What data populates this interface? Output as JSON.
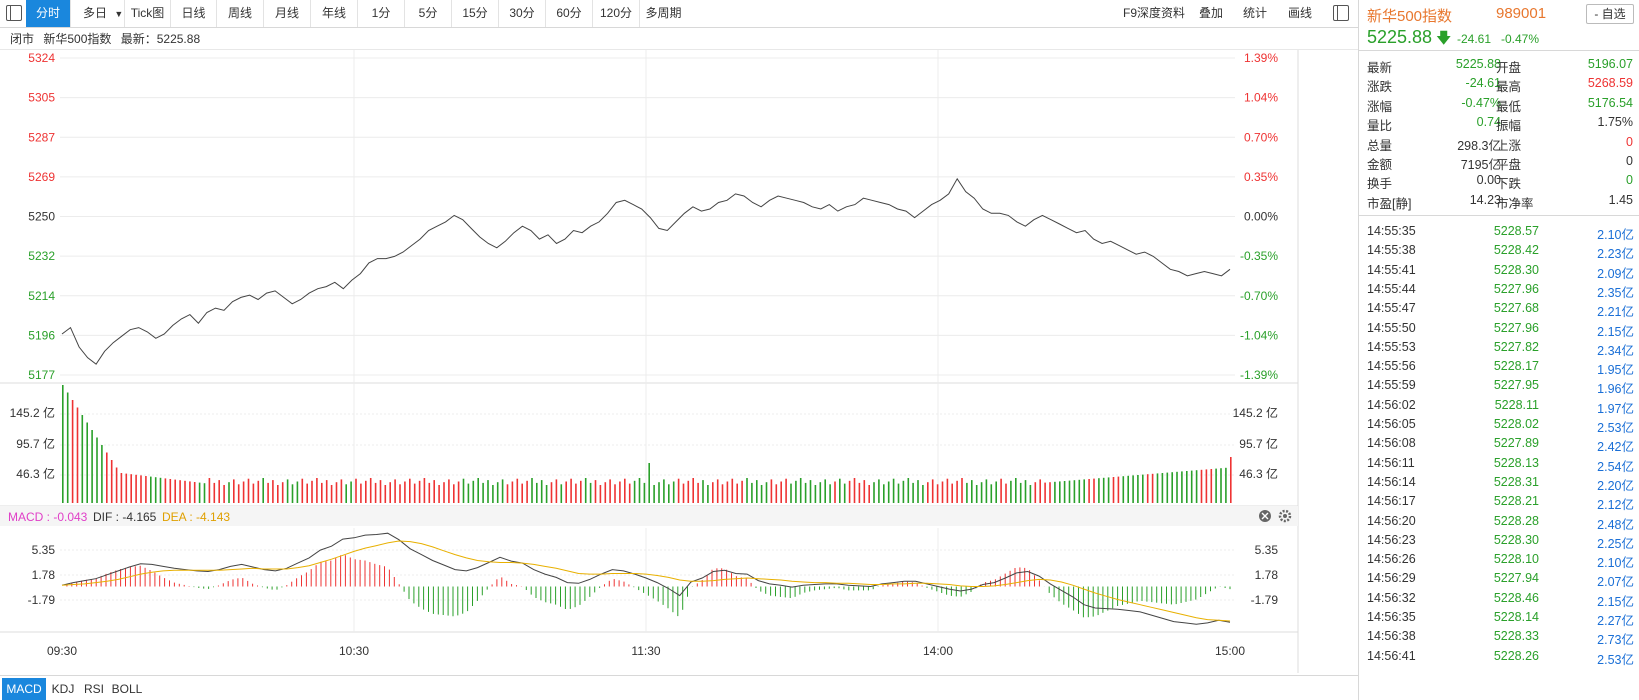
{
  "toolbar": {
    "tabs": [
      "分时",
      "多日",
      "Tick图",
      "日线",
      "周线",
      "月线",
      "年线",
      "1分",
      "5分",
      "15分",
      "30分",
      "60分",
      "120分",
      "多周期"
    ],
    "active_tab": "分时",
    "dropdown_arrow": "▼",
    "right_buttons": [
      "F9深度资料",
      "叠加",
      "统计",
      "画线"
    ]
  },
  "infoline": {
    "status": "闭市",
    "name": "新华500指数",
    "latest_label": "最新：5225.88"
  },
  "price_axis": {
    "left_labels": [
      "5324",
      "5305",
      "5287",
      "5269",
      "5250",
      "5232",
      "5214",
      "5196",
      "5177"
    ],
    "right_labels": [
      "1.39%",
      "1.04%",
      "0.70%",
      "0.35%",
      "0.00%",
      "-0.35%",
      "-0.70%",
      "-1.04%",
      "-1.39%"
    ],
    "ymax": 5324,
    "ymin": 5177
  },
  "volume_axis": {
    "labels": [
      "145.2 亿",
      "95.7 亿",
      "46.3 亿"
    ]
  },
  "macd": {
    "macd_label": "MACD : -0.043",
    "dif_label": "DIF : -4.165",
    "dea_label": "DEA : -4.143",
    "axis_labels": [
      "5.35",
      "1.78",
      "-1.79"
    ]
  },
  "time_axis": [
    "09:30",
    "10:30",
    "11:30",
    "14:00",
    "15:00"
  ],
  "bottom_tabs": [
    "MACD",
    "KDJ",
    "RSI",
    "BOLL"
  ],
  "quote": {
    "name": "新华500指数",
    "code": "989001",
    "watch_label": "- 自选",
    "price": "5225.88",
    "arrow": "🡇",
    "change": "-24.61",
    "change_pct": "-0.47%",
    "rows": [
      {
        "l1": "最新",
        "v1": "5225.88",
        "c1": "green",
        "l2": "开盘",
        "v2": "5196.07",
        "c2": "green"
      },
      {
        "l1": "涨跌",
        "v1": "-24.61",
        "c1": "green",
        "l2": "最高",
        "v2": "5268.59",
        "c2": "red"
      },
      {
        "l1": "涨幅",
        "v1": "-0.47%",
        "c1": "green",
        "l2": "最低",
        "v2": "5176.54",
        "c2": "green"
      },
      {
        "l1": "量比",
        "v1": "0.74",
        "c1": "green",
        "l2": "振幅",
        "v2": "1.75%",
        "c2": "black"
      },
      {
        "l1": "总量",
        "v1": "298.3亿",
        "c1": "black",
        "l2": "上涨",
        "v2": "0",
        "c2": "red"
      },
      {
        "l1": "金额",
        "v1": "7195亿",
        "c1": "black",
        "l2": "平盘",
        "v2": "0",
        "c2": "black"
      },
      {
        "l1": "换手",
        "v1": "0.00",
        "c1": "black",
        "l2": "下跌",
        "v2": "0",
        "c2": "green"
      },
      {
        "l1": "市盈[静]",
        "v1": "14.23",
        "c1": "black",
        "l2": "市净率",
        "v2": "1.45",
        "c2": "black"
      }
    ]
  },
  "ticks": [
    {
      "t": "14:55:35",
      "p": "5228.57",
      "v": "2.10亿"
    },
    {
      "t": "14:55:38",
      "p": "5228.42",
      "v": "2.23亿"
    },
    {
      "t": "14:55:41",
      "p": "5228.30",
      "v": "2.09亿"
    },
    {
      "t": "14:55:44",
      "p": "5227.96",
      "v": "2.35亿"
    },
    {
      "t": "14:55:47",
      "p": "5227.68",
      "v": "2.21亿"
    },
    {
      "t": "14:55:50",
      "p": "5227.96",
      "v": "2.15亿"
    },
    {
      "t": "14:55:53",
      "p": "5227.82",
      "v": "2.34亿"
    },
    {
      "t": "14:55:56",
      "p": "5228.17",
      "v": "1.95亿"
    },
    {
      "t": "14:55:59",
      "p": "5227.95",
      "v": "1.96亿"
    },
    {
      "t": "14:56:02",
      "p": "5228.11",
      "v": "1.97亿"
    },
    {
      "t": "14:56:05",
      "p": "5228.02",
      "v": "2.53亿"
    },
    {
      "t": "14:56:08",
      "p": "5227.89",
      "v": "2.42亿"
    },
    {
      "t": "14:56:11",
      "p": "5228.13",
      "v": "2.54亿"
    },
    {
      "t": "14:56:14",
      "p": "5228.31",
      "v": "2.20亿"
    },
    {
      "t": "14:56:17",
      "p": "5228.21",
      "v": "2.12亿"
    },
    {
      "t": "14:56:20",
      "p": "5228.28",
      "v": "2.48亿"
    },
    {
      "t": "14:56:23",
      "p": "5228.30",
      "v": "2.25亿"
    },
    {
      "t": "14:56:26",
      "p": "5228.10",
      "v": "2.10亿"
    },
    {
      "t": "14:56:29",
      "p": "5227.94",
      "v": "2.07亿"
    },
    {
      "t": "14:56:32",
      "p": "5228.46",
      "v": "2.15亿"
    },
    {
      "t": "14:56:35",
      "p": "5228.14",
      "v": "2.27亿"
    },
    {
      "t": "14:56:38",
      "p": "5228.33",
      "v": "2.73亿"
    },
    {
      "t": "14:56:41",
      "p": "5228.26",
      "v": "2.53亿"
    }
  ],
  "chart_data": {
    "type": "line",
    "title": "新华500指数",
    "prev_close": 5250.49,
    "price_series": [
      5196,
      5199,
      5190,
      5185,
      5182,
      5188,
      5192,
      5195,
      5198,
      5199,
      5197,
      5194,
      5196,
      5200,
      5203,
      5205,
      5201,
      5206,
      5208,
      5207,
      5211,
      5213,
      5214,
      5212,
      5215,
      5216,
      5213,
      5210,
      5212,
      5215,
      5217,
      5218,
      5220,
      5217,
      5221,
      5224,
      5229,
      5231,
      5231,
      5232,
      5234,
      5237,
      5240,
      5244,
      5246,
      5248,
      5251,
      5249,
      5245,
      5241,
      5238,
      5236,
      5239,
      5243,
      5246,
      5244,
      5240,
      5242,
      5238,
      5240,
      5244,
      5243,
      5246,
      5248,
      5252,
      5257,
      5258,
      5256,
      5254,
      5250,
      5245,
      5244,
      5248,
      5252,
      5255,
      5253,
      5254,
      5257,
      5258,
      5261,
      5260,
      5257,
      5255,
      5258,
      5260,
      5259,
      5258,
      5257,
      5255,
      5254,
      5256,
      5253,
      5255,
      5256,
      5259,
      5258,
      5257,
      5256,
      5254,
      5253,
      5250,
      5253,
      5256,
      5258,
      5261,
      5268,
      5262,
      5259,
      5254,
      5252,
      5252,
      5251,
      5248,
      5246,
      5249,
      5251,
      5249,
      5247,
      5245,
      5243,
      5244,
      5240,
      5238,
      5239,
      5237,
      5235,
      5233,
      5234,
      5232,
      5229,
      5226,
      5225,
      5223,
      5224,
      5225,
      5224,
      5223,
      5226
    ],
    "dif_series": [
      0.2,
      0.6,
      0.9,
      1.2,
      1.8,
      2.4,
      3.0,
      3.5,
      3.4,
      3.1,
      2.8,
      2.6,
      2.4,
      2.3,
      2.6,
      3.1,
      3.4,
      3.0,
      2.6,
      2.4,
      2.8,
      3.6,
      4.4,
      5.6,
      6.2,
      7.3,
      7.5,
      7.9,
      8.0,
      8.2,
      7.2,
      5.8,
      4.9,
      4.0,
      3.3,
      2.6,
      2.4,
      2.9,
      3.7,
      4.5,
      3.9,
      3.6,
      2.6,
      1.9,
      1.4,
      0.6,
      0.5,
      1.1,
      1.9,
      2.6,
      2.4,
      1.9,
      1.3,
      0.6,
      -0.3,
      -1.4,
      0.7,
      1.3,
      2.3,
      2.5,
      2.0,
      1.9,
      0.9,
      0.4,
      0.2,
      -0.1,
      0.2,
      0.3,
      0.4,
      0.4,
      0.2,
      0.1,
      0.0,
      0.4,
      0.6,
      0.8,
      0.8,
      0.4,
      0.0,
      -0.4,
      -0.7,
      -0.4,
      0.3,
      0.6,
      1.3,
      2.1,
      2.3,
      1.6,
      0.4,
      -0.6,
      -1.6,
      -2.8,
      -3.3,
      -3.4,
      -3.5,
      -3.7,
      -3.9,
      -4.4,
      -4.9,
      -5.4,
      -5.6,
      -5.8,
      -5.6,
      -5.2,
      -5.5
    ],
    "dea_series": [
      0.2,
      0.3,
      0.4,
      0.6,
      0.8,
      1.1,
      1.5,
      1.9,
      2.2,
      2.4,
      2.5,
      2.5,
      2.5,
      2.5,
      2.5,
      2.6,
      2.7,
      2.8,
      2.7,
      2.7,
      2.7,
      2.9,
      3.2,
      3.7,
      4.2,
      4.8,
      5.4,
      5.9,
      6.3,
      6.7,
      7.0,
      6.9,
      6.6,
      6.1,
      5.5,
      4.9,
      4.4,
      4.0,
      3.8,
      3.7,
      3.7,
      3.6,
      3.4,
      3.1,
      2.8,
      2.4,
      2.0,
      1.9,
      1.9,
      2.0,
      2.0,
      2.0,
      1.9,
      1.7,
      1.4,
      1.0,
      0.8,
      0.8,
      0.9,
      1.1,
      1.2,
      1.3,
      1.2,
      1.1,
      1.0,
      0.8,
      0.7,
      0.6,
      0.6,
      0.5,
      0.5,
      0.4,
      0.3,
      0.3,
      0.4,
      0.4,
      0.5,
      0.5,
      0.4,
      0.3,
      0.1,
      0.0,
      0.0,
      0.1,
      0.3,
      0.6,
      0.9,
      1.1,
      1.0,
      0.7,
      0.2,
      -0.4,
      -1.0,
      -1.5,
      -2.0,
      -2.4,
      -2.8,
      -3.2,
      -3.6,
      -4.0,
      -4.4,
      -4.8,
      -5.1,
      -5.2,
      -5.3
    ],
    "volume_note": "volume bars shown from 09:30 to 15:00, red for up ticks and green for down ticks"
  }
}
